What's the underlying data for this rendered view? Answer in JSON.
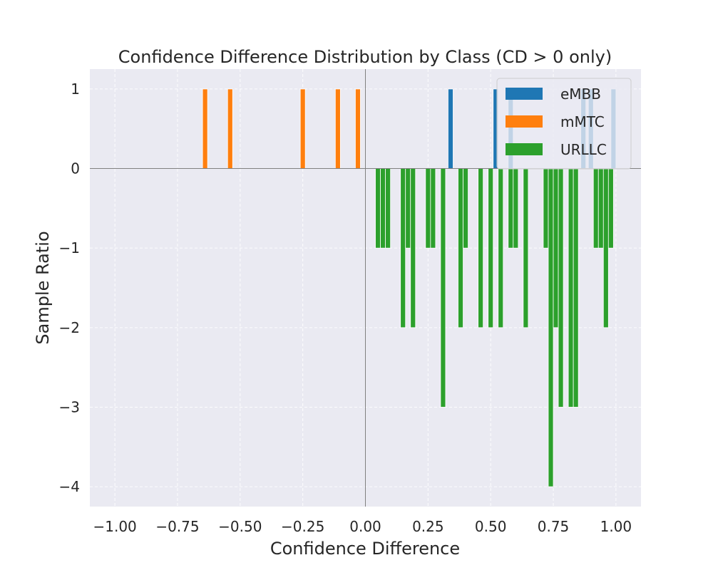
{
  "chart_data": {
    "type": "bar",
    "title": "Confidence Difference Distribution by Class (CD > 0 only)",
    "xlabel": "Confidence Difference",
    "ylabel": "Sample Ratio",
    "xlim": [
      -1.1,
      1.1
    ],
    "ylim": [
      -4.25,
      1.25
    ],
    "xticks": [
      -1.0,
      -0.75,
      -0.5,
      -0.25,
      0.0,
      0.25,
      0.5,
      0.75,
      1.0
    ],
    "xtick_labels": [
      "−1.00",
      "−0.75",
      "−0.50",
      "−0.25",
      "0.00",
      "0.25",
      "0.50",
      "0.75",
      "1.00"
    ],
    "yticks": [
      -4,
      -3,
      -2,
      -1,
      0,
      1
    ],
    "ytick_labels": [
      "−4",
      "−3",
      "−2",
      "−1",
      "0",
      "1"
    ],
    "grid": true,
    "legend_position": "top-right",
    "bar_width": 0.02,
    "series": [
      {
        "name": "eMBB",
        "color": "#1f77b4",
        "x": [
          0.34,
          0.52,
          0.58,
          0.87,
          0.9,
          0.99
        ],
        "values": [
          1,
          1,
          1,
          1,
          1,
          1
        ]
      },
      {
        "name": "mMTC",
        "color": "#ff7f0e",
        "x": [
          -0.64,
          -0.54,
          -0.25,
          -0.11,
          -0.03
        ],
        "values": [
          1,
          1,
          1,
          1,
          1
        ]
      },
      {
        "name": "URLLC",
        "color": "#2ca02c",
        "x": [
          0.05,
          0.07,
          0.09,
          0.15,
          0.17,
          0.19,
          0.25,
          0.27,
          0.31,
          0.38,
          0.4,
          0.46,
          0.5,
          0.54,
          0.58,
          0.6,
          0.64,
          0.72,
          0.74,
          0.76,
          0.78,
          0.82,
          0.84,
          0.92,
          0.94,
          0.96,
          0.98
        ],
        "values": [
          -1,
          -1,
          -1,
          -2,
          -1,
          -2,
          -1,
          -1,
          -3,
          -2,
          -1,
          -2,
          -2,
          -2,
          -1,
          -1,
          -2,
          -1,
          -4,
          -2,
          -3,
          -3,
          -3,
          -1,
          -1,
          -2,
          -1
        ]
      }
    ]
  }
}
